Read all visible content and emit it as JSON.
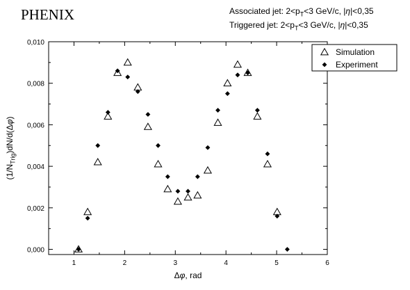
{
  "chart_data": {
    "type": "scatter",
    "title": "PHENIX",
    "annotations": [
      {
        "parts": [
          [
            "Associated jet: 2<p",
            ""
          ],
          [
            "T",
            "sub"
          ],
          [
            "<3 GeV/c, |",
            ""
          ],
          [
            "η",
            "greek"
          ],
          [
            "|<0,35",
            ""
          ]
        ]
      },
      {
        "parts": [
          [
            "Triggered jet: 2<p",
            ""
          ],
          [
            "T",
            "sub"
          ],
          [
            "<3 GeV/c, |",
            ""
          ],
          [
            "η",
            "greek"
          ],
          [
            "|<0,35",
            ""
          ]
        ]
      }
    ],
    "xlabel": {
      "parts": [
        [
          "Δ",
          ""
        ],
        [
          "φ",
          "italic"
        ],
        [
          ", rad",
          ""
        ]
      ]
    },
    "ylabel": {
      "parts": [
        [
          "(1/N",
          ""
        ],
        [
          "Trig",
          "sub"
        ],
        [
          ")dN/d(Δ",
          ""
        ],
        [
          "φ",
          "italic"
        ],
        [
          ")",
          ""
        ]
      ]
    },
    "xlim": [
      0.5,
      6
    ],
    "ylim": [
      -0.00025,
      0.01
    ],
    "xticks": [
      1,
      2,
      3,
      4,
      5,
      6
    ],
    "xtick_labels": [
      "1",
      "2",
      "3",
      "4",
      "5",
      "6"
    ],
    "yticks": [
      0,
      0.002,
      0.004,
      0.006,
      0.008,
      0.01
    ],
    "ytick_labels": [
      "0,000",
      "0,002",
      "0,004",
      "0,006",
      "0,008",
      "0,010"
    ],
    "grid": false,
    "legend_position": "top-right",
    "series": [
      {
        "name": "Simulation",
        "marker": "open-triangle",
        "color": "#000000",
        "x": [
          1.09,
          1.27,
          1.47,
          1.67,
          1.86,
          2.06,
          2.26,
          2.46,
          2.66,
          2.85,
          3.05,
          3.25,
          3.44,
          3.64,
          3.84,
          4.03,
          4.23,
          4.43,
          4.62,
          4.82,
          5.01
        ],
        "y": [
          0.0,
          0.0018,
          0.0042,
          0.0064,
          0.0085,
          0.009,
          0.0078,
          0.0059,
          0.0041,
          0.0029,
          0.0023,
          0.0025,
          0.0026,
          0.0038,
          0.0061,
          0.008,
          0.0089,
          0.0085,
          0.0064,
          0.0041,
          0.0018
        ]
      },
      {
        "name": "Experiment",
        "marker": "filled-diamond",
        "color": "#000000",
        "x": [
          1.09,
          1.27,
          1.47,
          1.67,
          1.86,
          2.06,
          2.26,
          2.46,
          2.66,
          2.85,
          3.05,
          3.25,
          3.44,
          3.64,
          3.84,
          4.03,
          4.23,
          4.43,
          4.62,
          4.82,
          5.01,
          5.21
        ],
        "y": [
          0.0,
          0.0015,
          0.005,
          0.0066,
          0.0086,
          0.0083,
          0.0076,
          0.0065,
          0.005,
          0.0035,
          0.0028,
          0.0028,
          0.0035,
          0.0049,
          0.0067,
          0.0075,
          0.0084,
          0.0085,
          0.0067,
          0.0046,
          0.0016,
          0.0
        ]
      }
    ]
  }
}
